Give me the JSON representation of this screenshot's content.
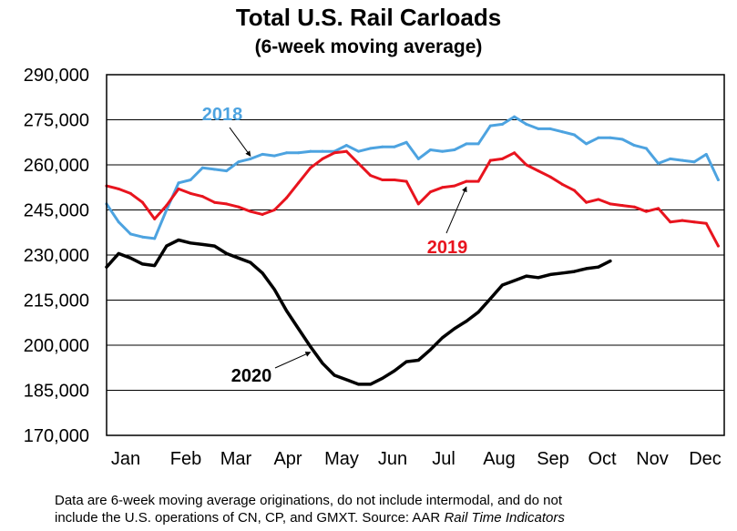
{
  "chart_data": {
    "type": "line",
    "title": "Total U.S. Rail Carloads",
    "subtitle": "(6-week moving average)",
    "xlabel": "",
    "ylabel": "",
    "ylim": [
      170000,
      290000
    ],
    "yticks": [
      170000,
      185000,
      200000,
      215000,
      230000,
      245000,
      260000,
      275000,
      290000
    ],
    "ytick_labels": [
      "170,000",
      "185,000",
      "200,000",
      "215,000",
      "230,000",
      "245,000",
      "260,000",
      "275,000",
      "290,000"
    ],
    "months": [
      "Jan",
      "Feb",
      "Mar",
      "Apr",
      "May",
      "Jun",
      "Jul",
      "Aug",
      "Sep",
      "Oct",
      "Nov",
      "Dec"
    ],
    "x_unit": "week of year",
    "xlim": [
      1,
      52.5
    ],
    "gridlines": "horizontal",
    "series": [
      {
        "name": "2018",
        "color": "#4da3e0",
        "x": [
          1,
          2,
          3,
          4,
          5,
          6,
          7,
          8,
          9,
          10,
          11,
          12,
          13,
          14,
          15,
          16,
          17,
          18,
          19,
          20,
          21,
          22,
          23,
          24,
          25,
          26,
          27,
          28,
          29,
          30,
          31,
          32,
          33,
          34,
          35,
          36,
          37,
          38,
          39,
          40,
          41,
          42,
          43,
          44,
          45,
          46,
          47,
          48,
          49,
          50,
          51,
          52
        ],
        "values": [
          247000,
          241000,
          237000,
          236000,
          235500,
          245000,
          254000,
          255000,
          259000,
          258500,
          258000,
          261000,
          262000,
          263500,
          263000,
          264000,
          264000,
          264500,
          264500,
          264500,
          266500,
          264500,
          265500,
          266000,
          266000,
          267500,
          262000,
          265000,
          264500,
          265000,
          267000,
          267000,
          273000,
          273500,
          276000,
          273500,
          272000,
          272000,
          271000,
          270000,
          267000,
          269000,
          269000,
          268500,
          266500,
          265500,
          260500,
          262000,
          261500,
          261000,
          263500,
          255000
        ]
      },
      {
        "name": "2019",
        "color": "#e8141e",
        "x": [
          1,
          2,
          3,
          4,
          5,
          6,
          7,
          8,
          9,
          10,
          11,
          12,
          13,
          14,
          15,
          16,
          17,
          18,
          19,
          20,
          21,
          22,
          23,
          24,
          25,
          26,
          27,
          28,
          29,
          30,
          31,
          32,
          33,
          34,
          35,
          36,
          37,
          38,
          39,
          40,
          41,
          42,
          43,
          44,
          45,
          46,
          47,
          48,
          49,
          50,
          51,
          52
        ],
        "values": [
          253000,
          252000,
          250500,
          247500,
          242000,
          246500,
          252000,
          250500,
          249500,
          247500,
          247000,
          246000,
          244500,
          243500,
          245000,
          249000,
          254000,
          259000,
          262000,
          264000,
          264500,
          260500,
          256500,
          255000,
          255000,
          254500,
          247000,
          251000,
          252500,
          253000,
          254500,
          254500,
          261500,
          262000,
          264000,
          260000,
          258000,
          256000,
          253500,
          251500,
          247500,
          248500,
          247000,
          246500,
          246000,
          244500,
          245500,
          241000,
          241500,
          241000,
          240500,
          233000
        ]
      },
      {
        "name": "2020",
        "color": "#000000",
        "x": [
          1,
          2,
          3,
          4,
          5,
          6,
          7,
          8,
          9,
          10,
          11,
          12,
          13,
          14,
          15,
          16,
          17,
          18,
          19,
          20,
          21,
          22,
          23,
          24,
          25,
          26,
          27,
          28,
          29,
          30,
          31,
          32,
          33,
          34,
          35,
          36,
          37,
          38,
          39,
          40,
          41,
          42,
          43
        ],
        "values": [
          226000,
          230500,
          229000,
          227000,
          226500,
          233000,
          235000,
          234000,
          233500,
          233000,
          230500,
          229000,
          227500,
          224000,
          218500,
          211500,
          205500,
          199500,
          194000,
          190000,
          188500,
          187000,
          187000,
          189000,
          191500,
          194500,
          195000,
          198500,
          202500,
          205500,
          208000,
          211000,
          215500,
          220000,
          221500,
          223000,
          222500,
          223500,
          224000,
          224500,
          225500,
          226000,
          228000
        ]
      }
    ],
    "annotations": [
      {
        "label": "2018",
        "series": "2018",
        "arrow_to_week": 13
      },
      {
        "label": "2019",
        "series": "2019",
        "arrow_to_week": 31
      },
      {
        "label": "2020",
        "series": "2020",
        "arrow_to_week": 18
      }
    ]
  },
  "footnote": {
    "line1": "Data are 6-week moving average originations, do not include intermodal, and do not",
    "line2": "include the U.S. operations of CN, CP, and GMXT.  Source: AAR ",
    "line2_source": "Rail Time Indicators"
  }
}
